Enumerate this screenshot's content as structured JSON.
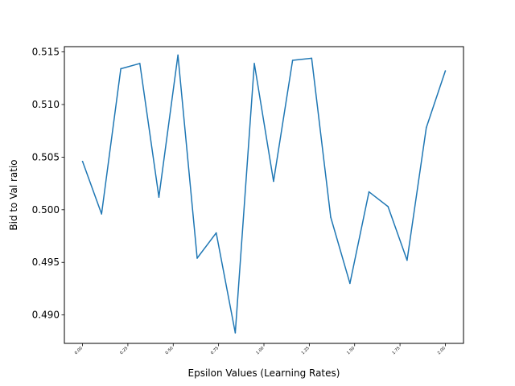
{
  "chart_data": {
    "type": "line",
    "xlabel": "Epsilon Values (Learning Rates)",
    "ylabel": "Bid to Val ratio",
    "xlim": [
      -0.1,
      2.1
    ],
    "ylim": [
      0.4873,
      0.5155
    ],
    "x_ticks": [
      0.0,
      0.25,
      0.5,
      0.75,
      1.0,
      1.25,
      1.5,
      1.75,
      2.0
    ],
    "x_tick_labels": [
      "0.00",
      "0.25",
      "0.50",
      "0.75",
      "1.00",
      "1.25",
      "1.50",
      "1.75",
      "2.00"
    ],
    "y_ticks": [
      0.49,
      0.495,
      0.5,
      0.505,
      0.51,
      0.515
    ],
    "y_tick_labels": [
      "0.490",
      "0.495",
      "0.500",
      "0.505",
      "0.510",
      "0.515"
    ],
    "series": [
      {
        "color": "#1f77b4",
        "x": [
          0.0,
          0.105,
          0.211,
          0.316,
          0.421,
          0.526,
          0.632,
          0.737,
          0.842,
          0.947,
          1.053,
          1.158,
          1.263,
          1.368,
          1.474,
          1.579,
          1.684,
          1.789,
          1.895,
          2.0
        ],
        "y": [
          0.5046,
          0.4996,
          0.5134,
          0.5139,
          0.5012,
          0.5147,
          0.4954,
          0.4978,
          0.4883,
          0.5139,
          0.5027,
          0.5142,
          0.5144,
          0.4993,
          0.493,
          0.5017,
          0.5003,
          0.4952,
          0.5078,
          0.5132
        ]
      }
    ],
    "grid": false,
    "legend": "none"
  }
}
